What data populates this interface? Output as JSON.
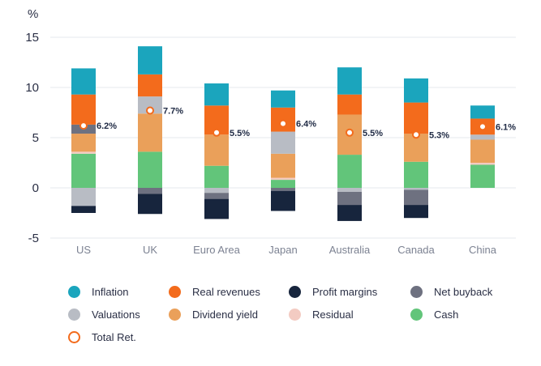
{
  "chart_data": {
    "type": "bar",
    "stacked": true,
    "unit_label": "%",
    "ylim": [
      -5,
      15
    ],
    "yticks": [
      -5,
      0,
      5,
      10,
      15
    ],
    "grid": true,
    "categories": [
      "US",
      "UK",
      "Euro Area",
      "Japan",
      "Australia",
      "Canada",
      "China"
    ],
    "positive_order": [
      "Cash",
      "Residual",
      "Dividend yield",
      "Valuations",
      "Net buyback",
      "Real revenues",
      "Inflation"
    ],
    "negative_order": [
      "Valuations",
      "Residual",
      "Net buyback",
      "Profit margins"
    ],
    "series": [
      {
        "name": "Inflation",
        "color": "#1ba5bd",
        "values": [
          2.6,
          2.8,
          2.2,
          1.7,
          2.7,
          2.4,
          1.3
        ]
      },
      {
        "name": "Real revenues",
        "color": "#f36b1c",
        "values": [
          3.0,
          2.2,
          2.9,
          2.4,
          2.0,
          3.1,
          1.6
        ]
      },
      {
        "name": "Profit margins",
        "color": "#17253d",
        "values": [
          -0.7,
          -2.0,
          -2.0,
          -2.0,
          -1.6,
          -1.3,
          0
        ]
      },
      {
        "name": "Net buyback",
        "color": "#6e7180",
        "values": [
          0.9,
          0,
          0,
          0,
          0,
          0,
          0
        ]
      },
      {
        "name": "Valuations",
        "color": "#b8bcc4",
        "values": [
          -1.8,
          1.7,
          -0.5,
          2.2,
          -0.4,
          -0.2,
          0.5
        ]
      },
      {
        "name": "Dividend yield",
        "color": "#eaa05a",
        "values": [
          1.8,
          3.8,
          3.1,
          2.4,
          4.0,
          2.8,
          2.3
        ]
      },
      {
        "name": "Residual",
        "color": "#f3cbc2",
        "values": [
          0.2,
          0,
          0,
          0.2,
          0,
          0,
          0.2
        ]
      },
      {
        "name": "Cash",
        "color": "#62c57a",
        "values": [
          3.4,
          3.6,
          2.2,
          0.8,
          3.3,
          2.6,
          2.3
        ]
      },
      {
        "name": "Net buyback (negative)",
        "color": "#6e7180",
        "values": [
          0,
          -0.6,
          -0.6,
          -0.3,
          -1.3,
          -1.5,
          0
        ]
      }
    ],
    "total_return": {
      "name": "Total Ret.",
      "color": "#f36b1c",
      "values": [
        6.2,
        7.7,
        5.5,
        6.4,
        5.5,
        5.3,
        6.1
      ],
      "labels": [
        "6.2%",
        "7.7%",
        "5.5%",
        "6.4%",
        "5.5%",
        "5.3%",
        "6.1%"
      ]
    }
  },
  "legend": [
    {
      "label": "Inflation",
      "color": "#1ba5bd",
      "kind": "dot"
    },
    {
      "label": "Real revenues",
      "color": "#f36b1c",
      "kind": "dot"
    },
    {
      "label": "Profit margins",
      "color": "#17253d",
      "kind": "dot"
    },
    {
      "label": "Net buyback",
      "color": "#6e7180",
      "kind": "dot"
    },
    {
      "label": "Valuations",
      "color": "#b8bcc4",
      "kind": "dot"
    },
    {
      "label": "Dividend yield",
      "color": "#eaa05a",
      "kind": "dot"
    },
    {
      "label": "Residual",
      "color": "#f3cbc2",
      "kind": "dot"
    },
    {
      "label": "Cash",
      "color": "#62c57a",
      "kind": "dot"
    },
    {
      "label": "Total Ret.",
      "color": "#f36b1c",
      "kind": "ring"
    }
  ]
}
